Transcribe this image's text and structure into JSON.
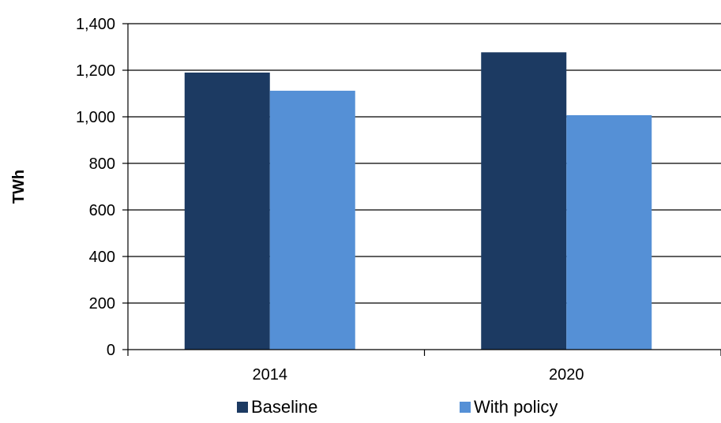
{
  "chart_data": {
    "type": "bar",
    "categories": [
      "2014",
      "2020"
    ],
    "series": [
      {
        "name": "Baseline",
        "values": [
          1190,
          1277
        ],
        "color": "#1c3a62"
      },
      {
        "name": "With policy",
        "values": [
          1112,
          1007
        ],
        "color": "#5590d6"
      }
    ],
    "title": "",
    "xlabel": "",
    "ylabel": "TWh",
    "ylim": [
      0,
      1400
    ],
    "yticks": [
      0,
      200,
      400,
      600,
      800,
      1000,
      1200,
      1400
    ],
    "ytick_labels": [
      "0",
      "200",
      "400",
      "600",
      "800",
      "1,000",
      "1,200",
      "1,400"
    ],
    "grid": true,
    "legend_position": "bottom"
  }
}
